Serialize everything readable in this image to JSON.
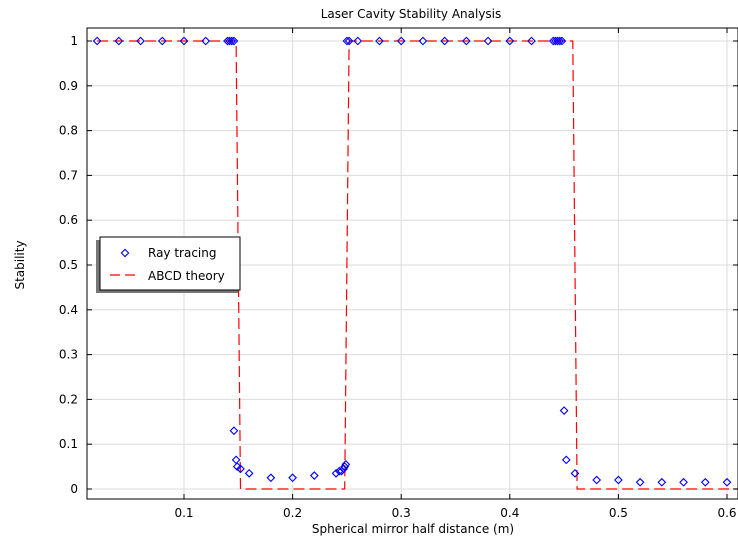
{
  "chart_data": {
    "type": "scatter",
    "title": "Laser Cavity Stability Analysis",
    "xlabel": "Spherical mirror half distance (m)",
    "ylabel": "Stability",
    "xlim": [
      0.015,
      0.61
    ],
    "ylim": [
      -0.02,
      1.02
    ],
    "xticks": [
      0.1,
      0.2,
      0.3,
      0.4,
      0.5,
      0.6
    ],
    "xtick_labels": [
      "0.1",
      "0.2",
      "0.3",
      "0.4",
      "0.5",
      "0.6"
    ],
    "yticks": [
      0,
      0.1,
      0.2,
      0.3,
      0.4,
      0.5,
      0.6,
      0.7,
      0.8,
      0.9,
      1
    ],
    "ytick_labels": [
      "0",
      "0.1",
      "0.2",
      "0.3",
      "0.4",
      "0.5",
      "0.6",
      "0.7",
      "0.8",
      "0.9",
      "1"
    ],
    "grid": true,
    "legend_position": "middle-left",
    "series": [
      {
        "name": "Ray tracing",
        "style": "markers",
        "marker": "diamond",
        "color": "#0000ff",
        "x": [
          0.02,
          0.04,
          0.06,
          0.08,
          0.1,
          0.12,
          0.14,
          0.142,
          0.144,
          0.146,
          0.146,
          0.148,
          0.149,
          0.152,
          0.16,
          0.18,
          0.2,
          0.22,
          0.24,
          0.243,
          0.245,
          0.247,
          0.248,
          0.249,
          0.25,
          0.252,
          0.26,
          0.28,
          0.3,
          0.32,
          0.34,
          0.36,
          0.38,
          0.4,
          0.42,
          0.44,
          0.442,
          0.444,
          0.446,
          0.448,
          0.45,
          0.452,
          0.46,
          0.48,
          0.5,
          0.52,
          0.54,
          0.56,
          0.58,
          0.6
        ],
        "y": [
          1,
          1,
          1,
          1,
          1,
          1,
          1,
          1,
          1,
          1,
          0.13,
          0.065,
          0.05,
          0.045,
          0.035,
          0.025,
          0.025,
          0.03,
          0.035,
          0.04,
          0.04,
          0.045,
          0.05,
          0.055,
          1,
          1,
          1,
          1,
          1,
          1,
          1,
          1,
          1,
          1,
          1,
          1,
          1,
          1,
          1,
          1,
          0.175,
          0.065,
          0.035,
          0.02,
          0.02,
          0.015,
          0.015,
          0.015,
          0.015,
          0.015
        ]
      },
      {
        "name": "ABCD theory",
        "style": "dashed-line",
        "color": "#ff0000",
        "x": [
          0.02,
          0.148,
          0.152,
          0.248,
          0.252,
          0.458,
          0.462,
          0.61
        ],
        "y": [
          1,
          1,
          0,
          0,
          1,
          1,
          0,
          0
        ]
      }
    ]
  }
}
